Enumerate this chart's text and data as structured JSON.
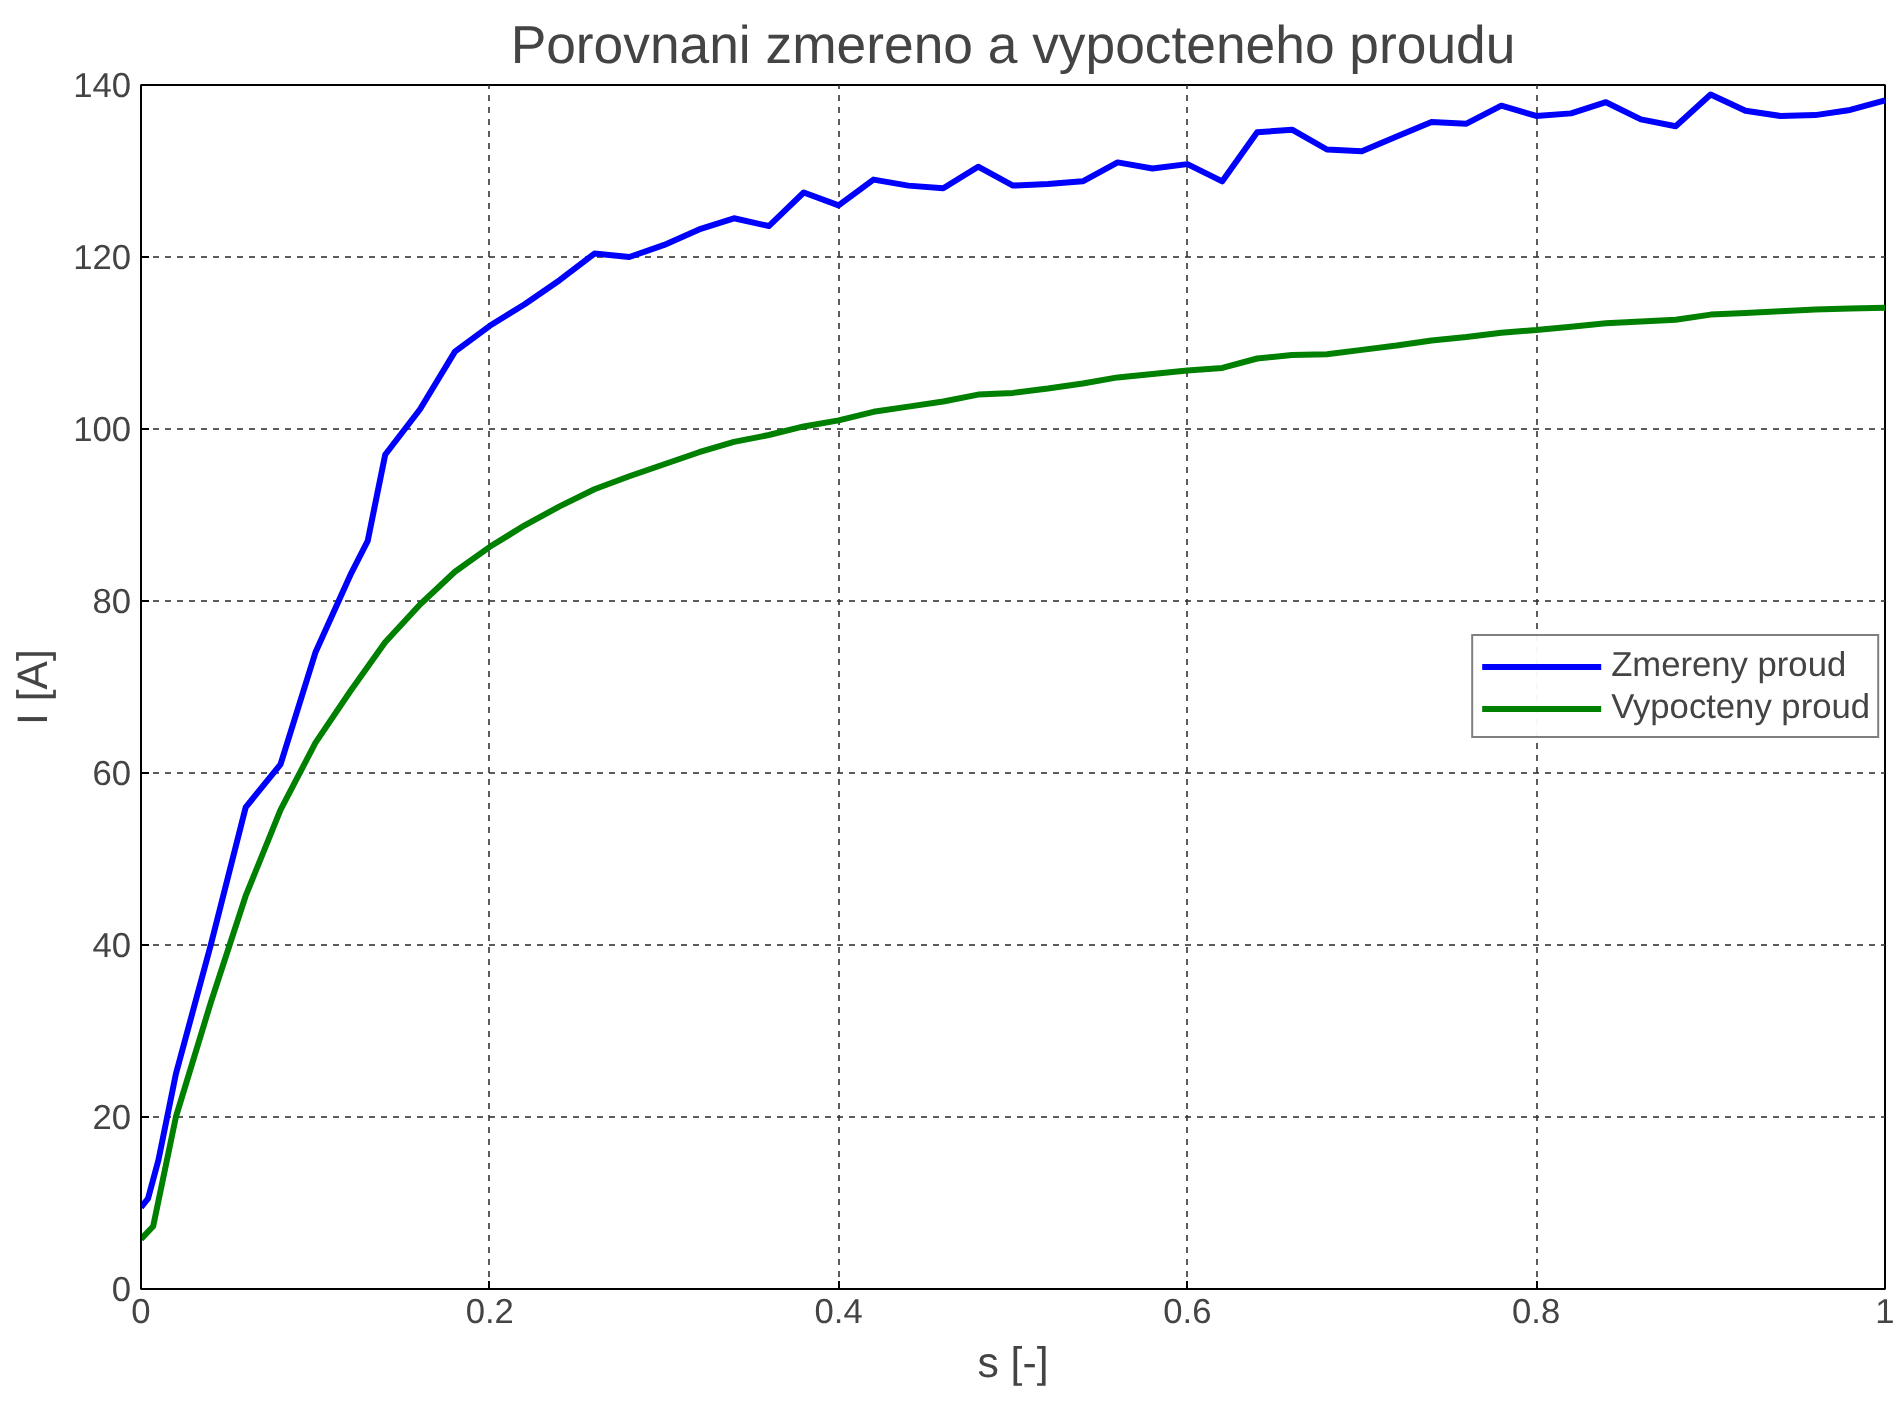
{
  "chart_data": {
    "type": "line",
    "title": "Porovnani zmereno a vypocteneho proudu",
    "xlabel": "s [-]",
    "ylabel": "I [A]",
    "xlim": [
      0,
      1
    ],
    "ylim": [
      0,
      140
    ],
    "xticks": [
      0,
      0.2,
      0.4,
      0.6,
      0.8,
      1
    ],
    "yticks": [
      0,
      20,
      40,
      60,
      80,
      100,
      120,
      140
    ],
    "grid": true,
    "legend": "right",
    "line_style": "solid",
    "marker": "none",
    "series": [
      {
        "name": "Zmereny proud",
        "color": "#0000ff",
        "x": [
          0,
          0.004,
          0.01,
          0.02,
          0.04,
          0.06,
          0.08,
          0.1,
          0.12,
          0.13,
          0.14,
          0.16,
          0.18,
          0.2,
          0.22,
          0.24,
          0.26,
          0.28,
          0.3,
          0.32,
          0.34,
          0.36,
          0.38,
          0.4,
          0.42,
          0.44,
          0.46,
          0.48,
          0.5,
          0.52,
          0.54,
          0.56,
          0.58,
          0.6,
          0.62,
          0.64,
          0.66,
          0.68,
          0.7,
          0.72,
          0.74,
          0.76,
          0.78,
          0.8,
          0.82,
          0.84,
          0.86,
          0.88,
          0.9,
          0.92,
          0.94,
          0.96,
          0.98,
          1.0
        ],
        "values": [
          9.5,
          10.5,
          15,
          25,
          40,
          56,
          61,
          74,
          83,
          87,
          97,
          102.3,
          109,
          112,
          114.5,
          117.3,
          120.4,
          120,
          121.4,
          123.2,
          124.5,
          123.6,
          127.5,
          126,
          129,
          128.3,
          128,
          130.5,
          128.3,
          128.5,
          128.8,
          131,
          130.3,
          130.8,
          128.8,
          134.5,
          134.8,
          132.5,
          132.3,
          134,
          135.7,
          135.5,
          137.6,
          136.4,
          136.7,
          138,
          136,
          135.2,
          138.9,
          137,
          136.4,
          136.5,
          137.1,
          138.2
        ]
      },
      {
        "name": "Vypocteny proud",
        "color": "#008000",
        "x": [
          0,
          0.007,
          0.02,
          0.04,
          0.06,
          0.08,
          0.1,
          0.12,
          0.14,
          0.16,
          0.18,
          0.2,
          0.22,
          0.24,
          0.26,
          0.28,
          0.3,
          0.32,
          0.34,
          0.36,
          0.38,
          0.4,
          0.42,
          0.44,
          0.46,
          0.48,
          0.5,
          0.52,
          0.54,
          0.56,
          0.58,
          0.6,
          0.62,
          0.64,
          0.66,
          0.68,
          0.7,
          0.72,
          0.74,
          0.76,
          0.78,
          0.8,
          0.82,
          0.84,
          0.86,
          0.88,
          0.9,
          0.92,
          0.94,
          0.96,
          0.98,
          1.0
        ],
        "values": [
          5.8,
          7.3,
          20,
          33.3,
          45.7,
          55.7,
          63.5,
          69.5,
          75.2,
          79.6,
          83.4,
          86.3,
          88.8,
          91,
          93,
          94.5,
          95.9,
          97.3,
          98.5,
          99.3,
          100.3,
          101,
          102,
          102.6,
          103.2,
          104,
          104.2,
          104.7,
          105.3,
          106,
          106.4,
          106.8,
          107.1,
          108.2,
          108.6,
          108.7,
          109.2,
          109.7,
          110.3,
          110.7,
          111.2,
          111.5,
          111.9,
          112.3,
          112.5,
          112.7,
          113.3,
          113.5,
          113.7,
          113.9,
          114,
          114.1
        ]
      }
    ]
  }
}
